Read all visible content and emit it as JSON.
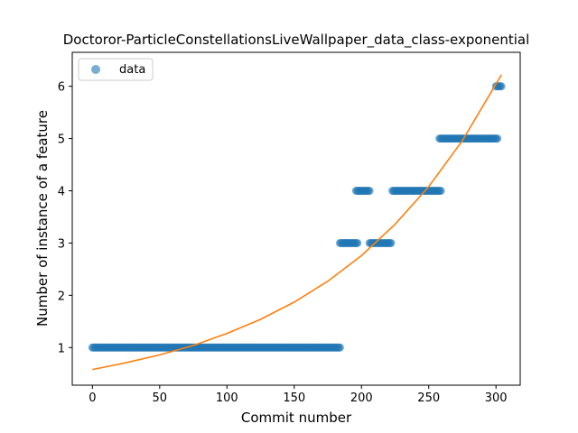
{
  "chart_data": {
    "type": "scatter",
    "title": "Doctoror-ParticleConstellationsLiveWallpaper_data_class-exponential",
    "xlabel": "Commit number",
    "ylabel": "Number of instance of a feature",
    "xlim": [
      -15,
      318
    ],
    "ylim": [
      0.28,
      6.65
    ],
    "xticks": [
      0,
      50,
      100,
      150,
      200,
      250,
      300
    ],
    "yticks": [
      1,
      2,
      3,
      4,
      5,
      6
    ],
    "grid": false,
    "legend": {
      "placement": "top-left",
      "entries": [
        "data"
      ]
    },
    "colors": {
      "points": "#1f77b4",
      "fit": "#ff7f0e"
    },
    "series": [
      {
        "name": "data",
        "kind": "scatter",
        "segments": [
          {
            "x_start": 0,
            "x_end": 184,
            "y": 1
          },
          {
            "x_start": 184,
            "x_end": 197,
            "y": 3
          },
          {
            "x_start": 196,
            "x_end": 206,
            "y": 4
          },
          {
            "x_start": 206,
            "x_end": 222,
            "y": 3
          },
          {
            "x_start": 223,
            "x_end": 259,
            "y": 4
          },
          {
            "x_start": 258,
            "x_end": 301,
            "y": 5
          },
          {
            "x_start": 300,
            "x_end": 304,
            "y": 6
          }
        ]
      },
      {
        "kind": "line",
        "x": [
          0,
          25,
          50,
          75,
          100,
          125,
          150,
          175,
          200,
          225,
          250,
          275,
          304
        ],
        "y": [
          0.58,
          0.71,
          0.86,
          1.04,
          1.27,
          1.54,
          1.87,
          2.27,
          2.76,
          3.36,
          4.08,
          4.96,
          6.22
        ]
      }
    ]
  }
}
